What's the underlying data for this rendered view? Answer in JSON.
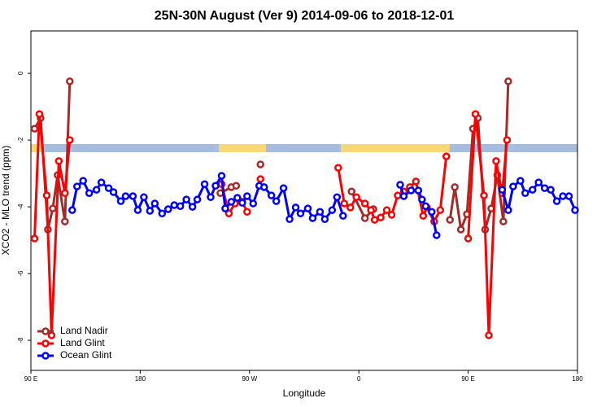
{
  "chart_data": {
    "type": "line",
    "title": "25N-30N August (Ver 9)   2014-09-06 to 2018-12-01",
    "x_label": "Longitude",
    "y_label": "XCO2 - MLO trend (ppm)",
    "xlim": [
      90,
      540
    ],
    "xticks": [
      {
        "value": 90,
        "label": "90 E"
      },
      180,
      {
        "value": 270,
        "label": "90 W"
      },
      {
        "value": 360,
        "label": "0"
      },
      {
        "value": 450,
        "label": "90 E"
      },
      {
        "value": 540,
        "label": "180"
      }
    ],
    "ylim": [
      -8.9,
      1.27
    ],
    "yticks": [
      0,
      -2,
      -4,
      -6,
      -8
    ],
    "legend": "bottom-left",
    "series": [
      {
        "name": "Land Nadir",
        "color": "#a52a2a",
        "x": [
          93,
          98,
          104,
          108,
          112,
          118,
          122,
          null,
          246,
          255,
          259,
          null,
          279,
          null,
          354,
          365,
          372,
          null,
          435,
          439,
          444,
          449,
          454,
          458,
          464,
          469,
          474,
          479,
          483
        ],
        "values": [
          -1.66,
          -1.34,
          -4.68,
          -4.05,
          -3.05,
          -4.44,
          -0.24,
          null,
          -3.59,
          -3.41,
          -3.37,
          null,
          -2.73,
          null,
          -3.54,
          -4.34,
          -4.07,
          null,
          -4.39,
          -3.41,
          -4.68,
          -4.22,
          -1.66,
          -1.34,
          -4.68,
          -4.05,
          -3.05,
          -4.44,
          -0.24
        ]
      },
      {
        "name": "Land Glint",
        "color": "#ff0000",
        "x": [
          93,
          97,
          103,
          107,
          113,
          118,
          122,
          null,
          247,
          253,
          258,
          264,
          268,
          null,
          279,
          null,
          343,
          348,
          353,
          358,
          365,
          370,
          373,
          378,
          383,
          387,
          392,
          397,
          402,
          407,
          413,
          416,
          422,
          427,
          432,
          null,
          450,
          456,
          463,
          467,
          473,
          478,
          482
        ],
        "values": [
          -4.95,
          -1.22,
          -3.66,
          -7.85,
          -2.63,
          -3.59,
          -2.0,
          null,
          -3.32,
          -4.2,
          -3.9,
          -3.85,
          -4.15,
          null,
          -3.17,
          null,
          -2.83,
          -3.9,
          -4.02,
          -3.71,
          -3.9,
          -4.1,
          -4.39,
          -4.32,
          -4.1,
          -4.24,
          -3.66,
          -3.54,
          -3.41,
          -3.24,
          -4.27,
          -4.02,
          -4.44,
          -4.1,
          -2.49,
          null,
          -4.95,
          -1.22,
          -3.66,
          -7.85,
          -2.63,
          -3.59,
          -2.0
        ]
      },
      {
        "name": "Ocean Glint",
        "color": "#0000ff",
        "x": [
          124,
          128,
          133,
          138,
          144,
          148,
          154,
          158,
          164,
          168,
          174,
          178,
          183,
          188,
          192,
          198,
          203,
          208,
          213,
          218,
          223,
          227,
          233,
          238,
          242,
          247,
          250,
          255,
          260,
          264,
          268,
          273,
          278,
          282,
          288,
          292,
          298,
          303,
          308,
          312,
          318,
          322,
          328,
          332,
          338,
          342,
          347,
          null,
          394,
          397,
          403,
          409,
          412,
          415,
          420,
          424,
          null,
          478,
          483,
          487,
          493,
          497,
          503,
          508,
          513,
          518,
          523,
          528,
          533,
          538
        ],
        "values": [
          -4.1,
          -3.39,
          -3.22,
          -3.59,
          -3.49,
          -3.27,
          -3.44,
          -3.56,
          -3.83,
          -3.68,
          -3.68,
          -4.1,
          -3.71,
          -4.12,
          -3.9,
          -4.2,
          -4.07,
          -3.95,
          -3.98,
          -3.78,
          -4.0,
          -3.78,
          -3.32,
          -3.71,
          -3.37,
          -3.07,
          -4.05,
          -3.85,
          -3.73,
          -3.88,
          -3.68,
          -3.9,
          -3.37,
          -3.41,
          -3.66,
          -3.83,
          -3.44,
          -4.37,
          -4.02,
          -4.2,
          -4.05,
          -4.34,
          -4.15,
          -4.37,
          -4.1,
          -3.71,
          -4.27,
          null,
          -3.34,
          -3.68,
          -3.51,
          -3.51,
          -3.78,
          -3.98,
          -4.15,
          -4.85,
          null,
          -3.49,
          -4.1,
          -3.39,
          -3.22,
          -3.59,
          -3.49,
          -3.27,
          -3.44,
          -3.49,
          -3.83,
          -3.68,
          -3.68,
          -4.1
        ]
      }
    ]
  }
}
